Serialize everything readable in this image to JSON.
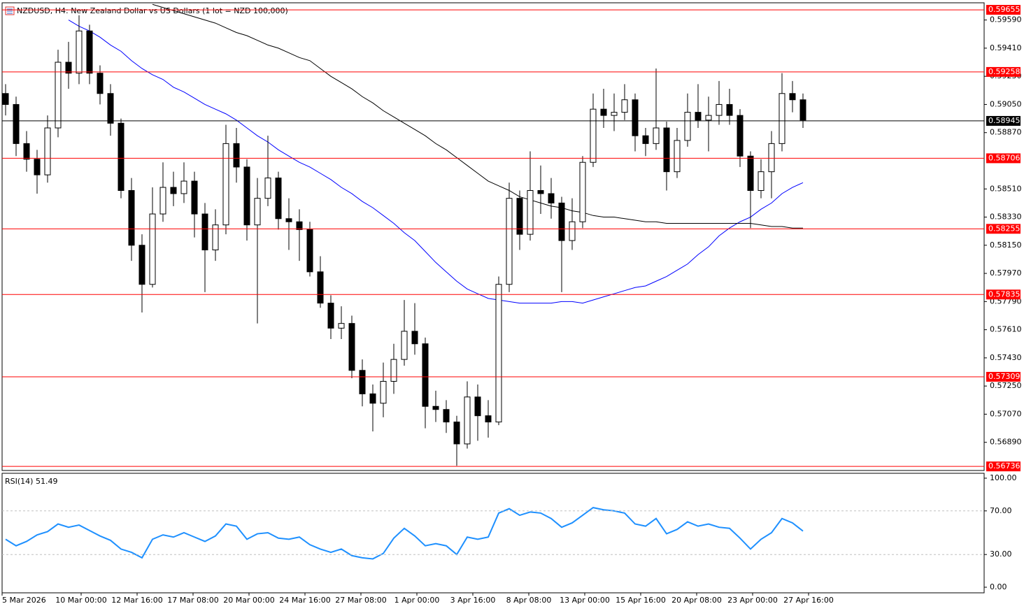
{
  "chart_data": [
    {
      "type": "candlestick",
      "title": "NZDUSD, H4:  New Zealand Dollar vs US Dollars (1 lot = NZD 100,000)",
      "ylim": [
        0.5671,
        0.597
      ],
      "yticks": [
        {
          "value": 0.5959,
          "label": "0.59590"
        },
        {
          "value": 0.5941,
          "label": "0.59410"
        },
        {
          "value": 0.5923,
          "label": "0.59230"
        },
        {
          "value": 0.5905,
          "label": "0.59050"
        },
        {
          "value": 0.5887,
          "label": "0.58870"
        },
        {
          "value": 0.5851,
          "label": "0.58510"
        },
        {
          "value": 0.5833,
          "label": "0.58330"
        },
        {
          "value": 0.5815,
          "label": "0.58150"
        },
        {
          "value": 0.5797,
          "label": "0.57970"
        },
        {
          "value": 0.5779,
          "label": "0.57790"
        },
        {
          "value": 0.5761,
          "label": "0.57610"
        },
        {
          "value": 0.5743,
          "label": "0.57430"
        },
        {
          "value": 0.5725,
          "label": "0.57250"
        },
        {
          "value": 0.5707,
          "label": "0.57070"
        },
        {
          "value": 0.5689,
          "label": "0.56890"
        }
      ],
      "x_labels": [
        "5 Mar 2026",
        "10 Mar 00:00",
        "12 Mar 16:00",
        "17 Mar 08:00",
        "20 Mar 00:00",
        "24 Mar 16:00",
        "27 Mar 08:00",
        "1 Apr 00:00",
        "3 Apr 16:00",
        "8 Apr 08:00",
        "13 Apr 00:00",
        "15 Apr 16:00",
        "20 Apr 08:00",
        "23 Apr 00:00",
        "27 Apr 16:00"
      ],
      "level_color": "#ff0000",
      "levels": [
        {
          "value": 0.59655,
          "label": "0.59655"
        },
        {
          "value": 0.59258,
          "label": "0.59258"
        },
        {
          "value": 0.58706,
          "label": "0.58706"
        },
        {
          "value": 0.58255,
          "label": "0.58255"
        },
        {
          "value": 0.57835,
          "label": "0.57835"
        },
        {
          "value": 0.57309,
          "label": "0.57309"
        },
        {
          "value": 0.56736,
          "label": "0.56736"
        }
      ],
      "last_price": {
        "value": 0.58945,
        "label": "0.58945"
      },
      "open": [
        0.5912,
        0.5905,
        0.588,
        0.587,
        0.586,
        0.589,
        0.5932,
        0.5925,
        0.5952,
        0.5925,
        0.5912,
        0.5893,
        0.585,
        0.5815,
        0.579,
        0.5835,
        0.5852,
        0.5848,
        0.5856,
        0.5835,
        0.5812,
        0.5828,
        0.588,
        0.5865,
        0.5828,
        0.5845,
        0.5858,
        0.5832,
        0.583,
        0.5825,
        0.5798,
        0.5778,
        0.5762,
        0.5765,
        0.5735,
        0.572,
        0.5714,
        0.5728,
        0.5742,
        0.576,
        0.5752,
        0.5712,
        0.571,
        0.5702,
        0.5688,
        0.5718,
        0.5706,
        0.5702,
        0.579,
        0.5845,
        0.5822,
        0.585,
        0.5848,
        0.5842,
        0.5818,
        0.583,
        0.5868,
        0.5902,
        0.5898,
        0.59,
        0.5908,
        0.5885,
        0.588,
        0.589,
        0.5862,
        0.5882,
        0.59,
        0.5895,
        0.5898,
        0.5905,
        0.5898,
        0.5872,
        0.585,
        0.5862,
        0.588,
        0.5912,
        0.5908
      ],
      "high": [
        0.5918,
        0.591,
        0.5888,
        0.5876,
        0.5898,
        0.594,
        0.5945,
        0.5962,
        0.5956,
        0.593,
        0.5918,
        0.5896,
        0.5858,
        0.5822,
        0.5852,
        0.5868,
        0.5862,
        0.5868,
        0.5862,
        0.5842,
        0.5838,
        0.5892,
        0.589,
        0.587,
        0.5858,
        0.5885,
        0.5862,
        0.5845,
        0.5838,
        0.583,
        0.5808,
        0.5783,
        0.5776,
        0.577,
        0.5742,
        0.5726,
        0.574,
        0.5752,
        0.578,
        0.5778,
        0.5756,
        0.5722,
        0.5716,
        0.5706,
        0.5728,
        0.5726,
        0.5716,
        0.5795,
        0.5855,
        0.585,
        0.5875,
        0.5866,
        0.5858,
        0.5846,
        0.5845,
        0.5872,
        0.5912,
        0.5915,
        0.5912,
        0.5918,
        0.5912,
        0.589,
        0.5928,
        0.5894,
        0.589,
        0.5912,
        0.5918,
        0.591,
        0.592,
        0.5915,
        0.5902,
        0.5875,
        0.587,
        0.5888,
        0.5925,
        0.592,
        0.5912
      ],
      "low": [
        0.5898,
        0.5872,
        0.5862,
        0.5848,
        0.5855,
        0.5884,
        0.5915,
        0.5918,
        0.5918,
        0.5905,
        0.5885,
        0.5845,
        0.5805,
        0.5772,
        0.5788,
        0.583,
        0.584,
        0.5842,
        0.582,
        0.5785,
        0.5805,
        0.5822,
        0.5855,
        0.5818,
        0.5765,
        0.584,
        0.5825,
        0.5812,
        0.5805,
        0.5795,
        0.5775,
        0.5755,
        0.5755,
        0.573,
        0.5712,
        0.5696,
        0.5705,
        0.572,
        0.5738,
        0.5745,
        0.5698,
        0.5702,
        0.5695,
        0.5674,
        0.5685,
        0.569,
        0.5692,
        0.57,
        0.5785,
        0.5812,
        0.5818,
        0.5835,
        0.5832,
        0.5785,
        0.5812,
        0.5826,
        0.5865,
        0.589,
        0.5888,
        0.5895,
        0.5875,
        0.5872,
        0.5876,
        0.585,
        0.5858,
        0.5878,
        0.589,
        0.5875,
        0.5892,
        0.5892,
        0.5865,
        0.5826,
        0.5845,
        0.5845,
        0.5875,
        0.59,
        0.589
      ],
      "close": [
        0.5905,
        0.588,
        0.587,
        0.586,
        0.589,
        0.5932,
        0.5925,
        0.5952,
        0.5925,
        0.5912,
        0.5893,
        0.585,
        0.5815,
        0.579,
        0.5835,
        0.5852,
        0.5848,
        0.5856,
        0.5835,
        0.5812,
        0.5828,
        0.588,
        0.5865,
        0.5828,
        0.5845,
        0.5858,
        0.5832,
        0.583,
        0.5825,
        0.5798,
        0.5778,
        0.5762,
        0.5765,
        0.5735,
        0.572,
        0.5714,
        0.5728,
        0.5742,
        0.576,
        0.5752,
        0.5712,
        0.571,
        0.5702,
        0.5688,
        0.5718,
        0.5706,
        0.5702,
        0.579,
        0.5845,
        0.5822,
        0.585,
        0.5848,
        0.5842,
        0.5818,
        0.583,
        0.5868,
        0.5902,
        0.5898,
        0.59,
        0.5908,
        0.5885,
        0.588,
        0.589,
        0.5862,
        0.5882,
        0.59,
        0.5895,
        0.5898,
        0.5905,
        0.5898,
        0.5872,
        0.585,
        0.5862,
        0.588,
        0.5912,
        0.5908,
        0.5895
      ],
      "moving_averages": [
        {
          "color": "#0000ff",
          "values": [
            null,
            null,
            null,
            null,
            null,
            null,
            0.5959,
            0.5955,
            0.5952,
            0.5948,
            0.5943,
            0.5939,
            0.5933,
            0.5928,
            0.5924,
            0.5921,
            0.5916,
            0.5913,
            0.5909,
            0.5905,
            0.5902,
            0.5899,
            0.5895,
            0.589,
            0.5885,
            0.5881,
            0.5876,
            0.5872,
            0.5868,
            0.5865,
            0.5861,
            0.5857,
            0.5852,
            0.5848,
            0.5843,
            0.5839,
            0.5834,
            0.5829,
            0.5823,
            0.5818,
            0.5811,
            0.5804,
            0.5798,
            0.5792,
            0.5787,
            0.5784,
            0.5781,
            0.578,
            0.5779,
            0.5778,
            0.5778,
            0.5778,
            0.5778,
            0.5779,
            0.5779,
            0.5778,
            0.578,
            0.5782,
            0.5784,
            0.5786,
            0.5788,
            0.5789,
            0.5792,
            0.5795,
            0.5799,
            0.5803,
            0.5809,
            0.5814,
            0.5821,
            0.5826,
            0.583,
            0.5833,
            0.5838,
            0.5842,
            0.5848,
            0.5852,
            0.5855
          ]
        },
        {
          "color": "#000000",
          "values": [
            null,
            null,
            null,
            null,
            null,
            null,
            null,
            null,
            null,
            null,
            null,
            null,
            null,
            null,
            0.5969,
            0.5967,
            0.5965,
            0.5963,
            0.5961,
            0.5959,
            0.5957,
            0.5954,
            0.5951,
            0.5949,
            0.5946,
            0.5943,
            0.5941,
            0.5938,
            0.5935,
            0.5933,
            0.5928,
            0.5923,
            0.5919,
            0.5915,
            0.591,
            0.5906,
            0.5901,
            0.5897,
            0.5893,
            0.5889,
            0.5885,
            0.588,
            0.5876,
            0.5871,
            0.5866,
            0.5861,
            0.5856,
            0.5853,
            0.585,
            0.5846,
            0.5844,
            0.5842,
            0.584,
            0.5839,
            0.5837,
            0.5836,
            0.5834,
            0.5833,
            0.5833,
            0.5832,
            0.5831,
            0.583,
            0.583,
            0.5829,
            0.5829,
            0.5829,
            0.5829,
            0.5829,
            0.5829,
            0.5829,
            0.5829,
            0.5829,
            0.5828,
            0.5827,
            0.5827,
            0.5826,
            0.5826
          ]
        }
      ]
    },
    {
      "type": "line",
      "title": "RSI(14) 51.49",
      "color": "#1e90ff",
      "ylim": [
        0,
        100
      ],
      "yticks": [
        {
          "value": 100,
          "label": "100.00"
        },
        {
          "value": 70,
          "label": "70.00"
        },
        {
          "value": 30,
          "label": "30.00"
        },
        {
          "value": 0,
          "label": "0.00"
        }
      ],
      "levels": [
        70,
        30
      ],
      "values": [
        44,
        38,
        42,
        48,
        51,
        58,
        55,
        57,
        52,
        47,
        43,
        35,
        32,
        27,
        44,
        48,
        46,
        50,
        46,
        42,
        47,
        58,
        56,
        44,
        49,
        50,
        45,
        44,
        46,
        39,
        35,
        32,
        35,
        29,
        27,
        26,
        31,
        45,
        54,
        47,
        38,
        40,
        38,
        30,
        46,
        44,
        46,
        68,
        72,
        66,
        69,
        68,
        63,
        55,
        59,
        66,
        73,
        71,
        70,
        68,
        58,
        56,
        63,
        49,
        53,
        60,
        56,
        58,
        55,
        54,
        45,
        35,
        44,
        50,
        63,
        59,
        51.49
      ]
    }
  ]
}
